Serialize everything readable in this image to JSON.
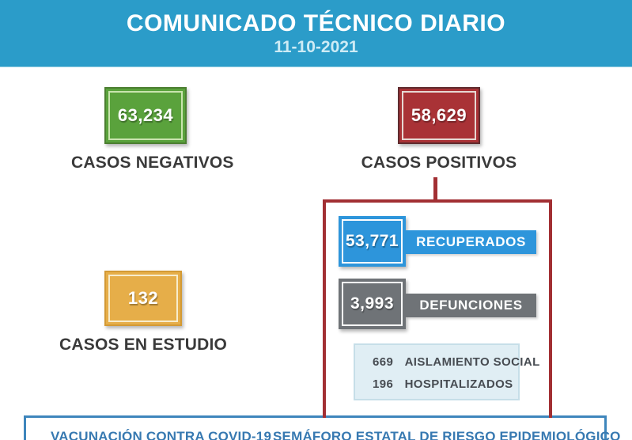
{
  "header": {
    "title": "COMUNICADO TÉCNICO DIARIO",
    "date": "11-10-2021",
    "bg_color": "#2B9CC9"
  },
  "cards": {
    "negativos": {
      "value": "63,234",
      "label": "CASOS NEGATIVOS",
      "color": "#5AA23C"
    },
    "positivos": {
      "value": "58,629",
      "label": "CASOS POSITIVOS",
      "color": "#A93236"
    },
    "estudio": {
      "value": "132",
      "label": "CASOS EN ESTUDIO",
      "color": "#E6AE49"
    }
  },
  "breakdown": {
    "frame_color": "#A22F33",
    "recuperados": {
      "value": "53,771",
      "label": "RECUPERADOS",
      "color": "#2D95DB"
    },
    "defunciones": {
      "value": "3,993",
      "label": "DEFUNCIONES",
      "color": "#6F7377"
    },
    "detalle": {
      "aislamiento": {
        "value": "669",
        "label": "AISLAMIENTO SOCIAL"
      },
      "hospitalizados": {
        "value": "196",
        "label": "HOSPITALIZADOS"
      }
    }
  },
  "footer": {
    "vacunacion": "VACUNACIÓN CONTRA COVID-19",
    "semaforo": "SEMÁFORO ESTATAL DE RIESGO EPIDEMIOLÓGICO",
    "border_color": "#3E86BC"
  }
}
